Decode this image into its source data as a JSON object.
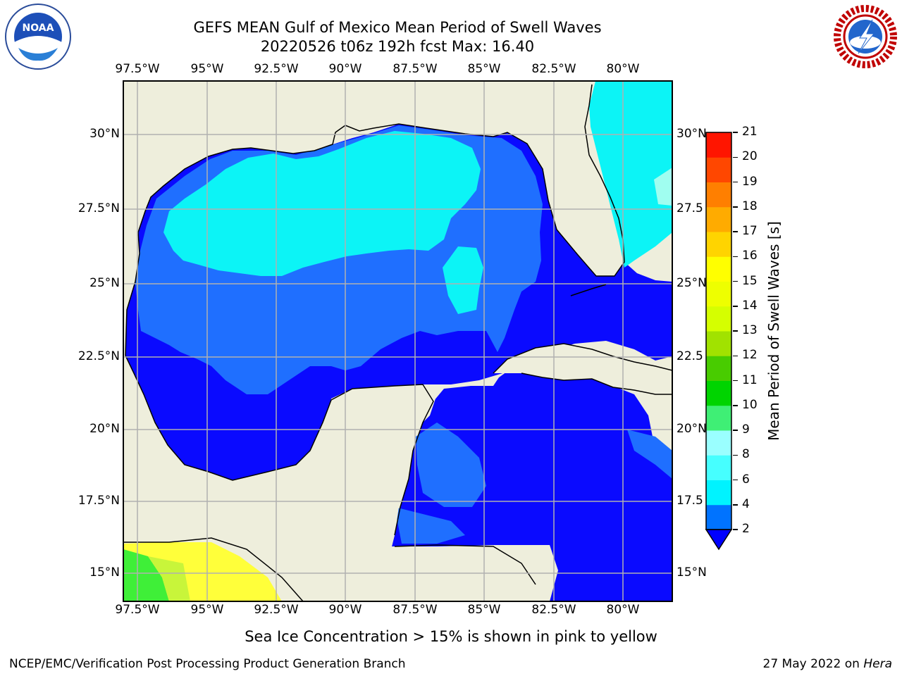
{
  "title_line1": "GEFS MEAN Gulf of Mexico Mean Period of Swell Waves",
  "title_line2": "20220526 t06z 192h fcst   Max: 16.40",
  "map": {
    "lon_labels": [
      "97.5°W",
      "95°W",
      "92.5°W",
      "90°W",
      "87.5°W",
      "85°W",
      "82.5°W",
      "80°W"
    ],
    "lat_labels_left": [
      "30°N",
      "27.5°N",
      "25°N",
      "22.5°N",
      "20°N",
      "17.5°N",
      "15°N"
    ],
    "lat_labels_right": [
      "30°N",
      "27.5",
      "25°N",
      "22.5",
      "20°N",
      "17.5",
      "15°N"
    ],
    "colors": {
      "land": "#eeeedc",
      "grid": "#b0b0b0",
      "swell_2_4": "#0a0aff",
      "swell_4_6": "#1f6fff",
      "swell_6_8": "#0cf4f6",
      "swell_8_9": "#44fbf4",
      "swell_9_10": "#a0fef0"
    }
  },
  "colorbar": {
    "label": "Mean Period of Swell Waves [s]",
    "ticks": [
      "2",
      "4",
      "6",
      "8",
      "9",
      "10",
      "11",
      "12",
      "13",
      "14",
      "15",
      "16",
      "17",
      "18",
      "19",
      "20",
      "21"
    ],
    "colors": [
      "#0000ff",
      "#0073ff",
      "#00f3ff",
      "#46ffff",
      "#9affff",
      "#3fef75",
      "#00d400",
      "#48cc00",
      "#a1e200",
      "#d5ff00",
      "#eeff00",
      "#ffff00",
      "#ffd400",
      "#ffab00",
      "#ff7f00",
      "#ff4700",
      "#ff1500",
      "#ff0000"
    ]
  },
  "logos": {
    "noaa_text": "NOAA",
    "nws_text": "NATIONAL WEATHER SERVICE"
  },
  "caption": "Sea Ice Concentration > 15% is shown in pink to yellow",
  "footer_left": "NCEP/EMC/Verification Post Processing Product Generation Branch",
  "footer_right_prefix": "27 May 2022 on ",
  "footer_right_host": "Hera"
}
